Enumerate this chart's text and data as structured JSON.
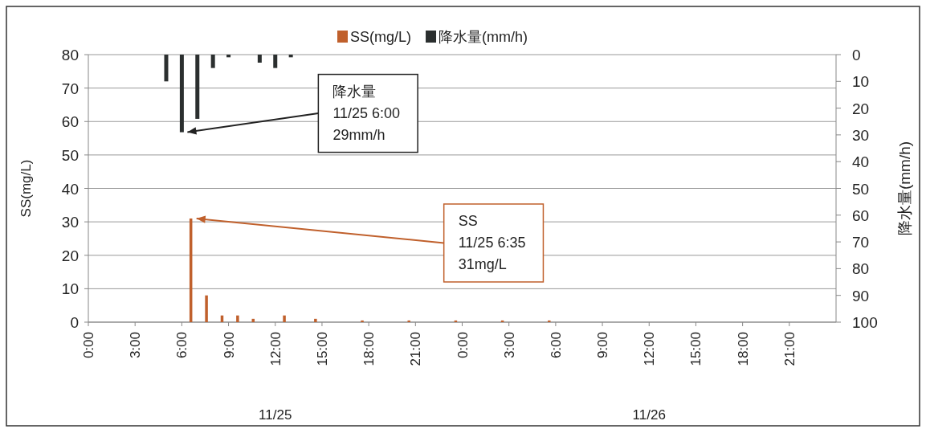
{
  "chart_data": {
    "type": "bar",
    "legend": "top",
    "grid": "y",
    "ylabel": "SS(mg/L)",
    "y2label": "降水量(mm/h)",
    "xlim": [
      "--11-25T00:00",
      "--11-27T00:00"
    ],
    "xticks": [
      {
        "value": "--11-25T00:00",
        "label": "0:00"
      },
      {
        "value": "--11-25T03:00",
        "label": "3:00"
      },
      {
        "value": "--11-25T06:00",
        "label": "6:00"
      },
      {
        "value": "--11-25T09:00",
        "label": "9:00"
      },
      {
        "value": "--11-25T12:00",
        "label": "12:00"
      },
      {
        "value": "--11-25T15:00",
        "label": "15:00"
      },
      {
        "value": "--11-25T18:00",
        "label": "18:00"
      },
      {
        "value": "--11-25T21:00",
        "label": "21:00"
      },
      {
        "value": "--11-26T00:00",
        "label": "0:00"
      },
      {
        "value": "--11-26T03:00",
        "label": "3:00"
      },
      {
        "value": "--11-26T06:00",
        "label": "6:00"
      },
      {
        "value": "--11-26T09:00",
        "label": "9:00"
      },
      {
        "value": "--11-26T12:00",
        "label": "12:00"
      },
      {
        "value": "--11-26T15:00",
        "label": "15:00"
      },
      {
        "value": "--11-26T18:00",
        "label": "18:00"
      },
      {
        "value": "--11-26T21:00",
        "label": "21:00"
      }
    ],
    "ylim": [
      0,
      80
    ],
    "yticks": [
      0,
      10,
      20,
      30,
      40,
      50,
      60,
      70,
      80
    ],
    "y2lim": [
      100,
      0
    ],
    "y2ticks": [
      0,
      10,
      20,
      30,
      40,
      50,
      60,
      70,
      80,
      90,
      100
    ],
    "series": [
      {
        "name": "SS(mg/L)",
        "color": "#c0602c",
        "x": [
          "--11-25T06:35",
          "--11-25T07:35",
          "--11-25T08:35",
          "--11-25T09:35",
          "--11-25T10:35",
          "--11-25T12:35",
          "--11-25T14:35",
          "--11-25T17:35",
          "--11-25T20:35",
          "--11-25T23:35",
          "--11-26T02:35",
          "--11-26T05:35"
        ],
        "values": [
          31,
          8,
          2,
          2,
          1,
          2,
          1,
          0.5,
          0.5,
          0.5,
          0.5,
          0.5
        ]
      },
      {
        "name": "降水量(mm/h)",
        "color": "#2b2f2f",
        "axis": "y2",
        "x": [
          "--11-25T05:00",
          "--11-25T06:00",
          "--11-25T07:00",
          "--11-25T08:00",
          "--11-25T09:00",
          "--11-25T11:00",
          "--11-25T12:00",
          "--11-25T13:00"
        ],
        "values": [
          10,
          29,
          24,
          5,
          1,
          3,
          5,
          1
        ]
      }
    ],
    "annotations": [
      {
        "text": "SS\n11/25 6:35\n31mg/L",
        "x": "--11-25T06:35",
        "y": 31
      },
      "降水量\n11/25 6:00\n29mm/h",
      "11/25",
      "11/26"
    ]
  }
}
